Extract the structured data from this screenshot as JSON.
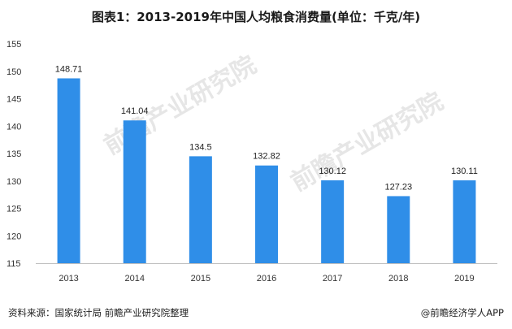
{
  "title": "图表1：2013-2019年中国人均粮食消费量(单位：千克/年)",
  "chart_data": {
    "type": "bar",
    "categories": [
      "2013",
      "2014",
      "2015",
      "2016",
      "2017",
      "2018",
      "2019"
    ],
    "values": [
      148.71,
      141.04,
      134.5,
      132.82,
      130.12,
      127.23,
      130.11
    ],
    "ylim": [
      115,
      155
    ],
    "yticks": [
      115,
      120,
      125,
      130,
      135,
      140,
      145,
      150,
      155
    ],
    "grid": false,
    "bar_color": "#2f8ee8"
  },
  "footer": {
    "source": "资料来源：国家统计局 前瞻产业研究院整理",
    "brand": "@前瞻经济学人APP"
  },
  "watermarks": [
    "前瞻产业研究院",
    "前瞻产业研究院"
  ]
}
